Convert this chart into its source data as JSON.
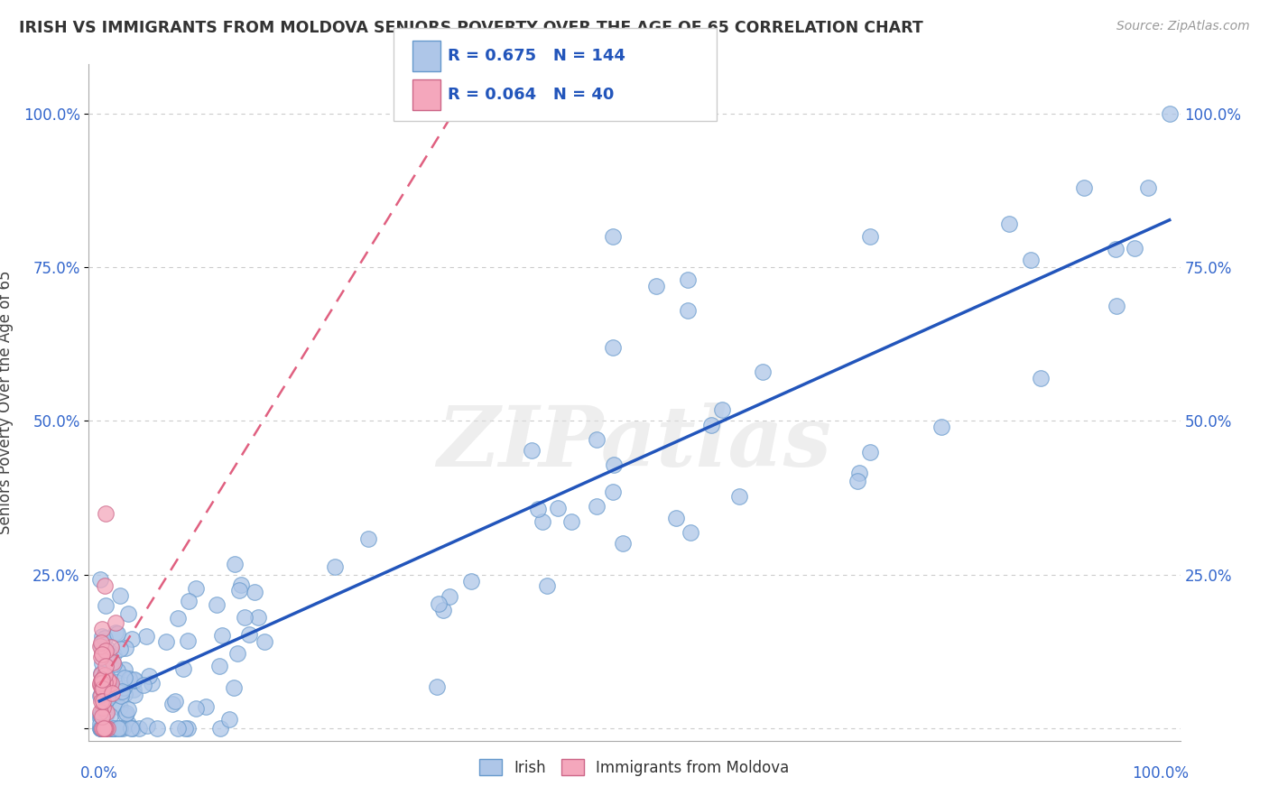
{
  "title": "IRISH VS IMMIGRANTS FROM MOLDOVA SENIORS POVERTY OVER THE AGE OF 65 CORRELATION CHART",
  "source": "Source: ZipAtlas.com",
  "ylabel": "Seniors Poverty Over the Age of 65",
  "legend_irish_R": "0.675",
  "legend_irish_N": "144",
  "legend_moldova_R": "0.064",
  "legend_moldova_N": "40",
  "legend_label_irish": "Irish",
  "legend_label_moldova": "Immigrants from Moldova",
  "irish_color": "#aec6e8",
  "moldova_color": "#f4a7bc",
  "irish_line_color": "#2255bb",
  "moldova_line_color": "#e06080",
  "watermark": "ZIPatlas",
  "background_color": "#ffffff",
  "grid_color": "#cccccc",
  "seed": 17
}
